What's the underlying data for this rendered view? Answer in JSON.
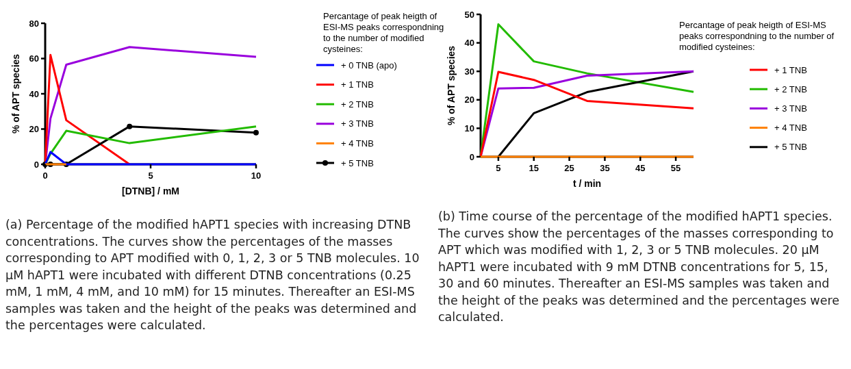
{
  "chart_data": [
    {
      "type": "line",
      "xlabel": "[DTNB] / mM",
      "ylabel": "% of  APT species",
      "legend_title": "Percantage of peak heigth of ESI-MS peaks correspondning to the number of modified cysteines:",
      "x": [
        0,
        0.25,
        1,
        4,
        10
      ],
      "xlim": [
        0,
        10
      ],
      "xticks": [
        0,
        5,
        10
      ],
      "ylim": [
        0,
        80
      ],
      "yticks": [
        0,
        20,
        40,
        60,
        80
      ],
      "legend": "right",
      "grid": false,
      "series": [
        {
          "name": "+ 0 TNB (apo)",
          "color": "#0000ff",
          "values": [
            0,
            7,
            0,
            0,
            0
          ]
        },
        {
          "name": "+ 1 TNB",
          "color": "#ff0000",
          "values": [
            0,
            62,
            25,
            0,
            null
          ]
        },
        {
          "name": "+ 2 TNB",
          "color": "#22bb00",
          "values": [
            0,
            6,
            19,
            12,
            21.5
          ]
        },
        {
          "name": "+ 3 TNB",
          "color": "#9900dd",
          "values": [
            0,
            26,
            56.5,
            66.5,
            61
          ]
        },
        {
          "name": "+ 4 TNB",
          "color": "#ff8000",
          "values": [
            0,
            0,
            0,
            null,
            null
          ]
        },
        {
          "name": "+ 5 TNB",
          "color": "#000000",
          "values": [
            0,
            0,
            0,
            21.5,
            18
          ],
          "marker": "circle"
        }
      ],
      "annotations": [
        "(a) Percentage of the modified hAPT1 species with increasing DTNB concentrations. The curves show the percentages of the masses corresponding to APT modified with 0, 1, 2, 3 or 5 TNB molecules. 10 μM hAPT1 were incubated with different DTNB concentrations (0.25 mM, 1 mM, 4 mM, and 10 mM) for 15 minutes. Thereafter an ESI-MS samples was taken and the height of the peaks was determined and the percentages were calculated."
      ]
    },
    {
      "type": "line",
      "xlabel": "t / min",
      "ylabel": "% of  APT species",
      "legend_title": "Percantage of peak heigth of ESI-MS peaks correspondning to the number of modified cysteines:",
      "x": [
        0,
        5,
        15,
        30,
        60
      ],
      "xlim": [
        0,
        60
      ],
      "xticks": [
        5,
        15,
        25,
        35,
        45,
        55
      ],
      "ylim": [
        0,
        50
      ],
      "yticks": [
        0,
        10,
        20,
        30,
        40,
        50
      ],
      "legend": "right",
      "grid": false,
      "series": [
        {
          "name": "+ 1 TNB",
          "color": "#ff0000",
          "values": [
            0,
            29.8,
            27,
            19.6,
            17
          ]
        },
        {
          "name": "+ 2 TNB",
          "color": "#22bb00",
          "values": [
            0,
            46.5,
            33.5,
            29.3,
            22.8
          ]
        },
        {
          "name": "+ 3 TNB",
          "color": "#9900dd",
          "values": [
            0,
            24,
            24.2,
            28.5,
            30
          ]
        },
        {
          "name": "+ 4 TNB",
          "color": "#ff8000",
          "values": [
            0,
            0,
            0,
            0,
            0
          ]
        },
        {
          "name": "+ 5 TNB",
          "color": "#000000",
          "values": [
            null,
            0,
            15.3,
            22.7,
            30
          ]
        }
      ],
      "annotations": [
        "(b) Time course of the percentage of the modified hAPT1 species. The curves show the percentages of the masses corresponding to APT which was modified with 1, 2, 3 or 5 TNB molecules. 20 μM hAPT1 were incubated with 9 mM DTNB concentrations for 5, 15, 30 and 60 minutes. Thereafter an ESI-MS samples was taken and the height of the peaks was determined and the percentages were calculated."
      ]
    }
  ]
}
